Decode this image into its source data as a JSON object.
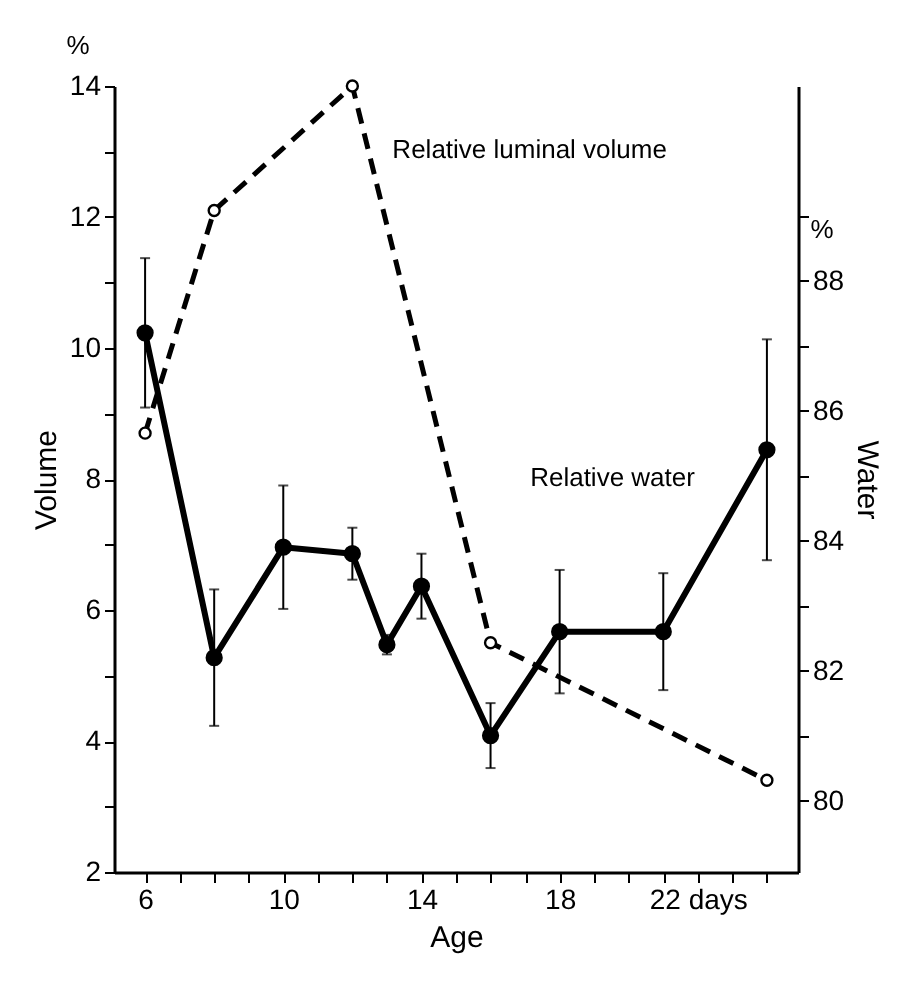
{
  "chart_data": {
    "type": "line",
    "xlabel": "Age",
    "ylabel": "Volume",
    "y2label": "Water",
    "annotations": [
      "%",
      "%"
    ],
    "xlim": [
      5.1,
      24.9
    ],
    "xticks": [
      6,
      {
        "value": 7,
        "label": null
      },
      {
        "value": 8,
        "label": null
      },
      {
        "value": 9,
        "label": null
      },
      10,
      {
        "value": 11,
        "label": null
      },
      {
        "value": 12,
        "label": null
      },
      {
        "value": 13,
        "label": null
      },
      14,
      {
        "value": 15,
        "label": null
      },
      {
        "value": 16,
        "label": null
      },
      {
        "value": 17,
        "label": null
      },
      18,
      {
        "value": 19,
        "label": null
      },
      {
        "value": 20,
        "label": null
      },
      {
        "value": 21,
        "label": null
      },
      {
        "value": 22,
        "label": "22 days"
      },
      {
        "value": 23,
        "label": null
      },
      {
        "value": 24,
        "label": null
      }
    ],
    "ylim": [
      2,
      14
    ],
    "yticks": [
      2,
      {
        "value": 3,
        "label": null
      },
      4,
      {
        "value": 5,
        "label": null
      },
      6,
      {
        "value": 7,
        "label": null
      },
      8,
      {
        "value": 9,
        "label": null
      },
      10,
      {
        "value": 11,
        "label": null
      },
      12,
      {
        "value": 13,
        "label": null
      },
      14
    ],
    "y2lim": [
      78.9,
      91
    ],
    "y2ticks": [
      80,
      {
        "value": 81,
        "label": null
      },
      82,
      {
        "value": 83,
        "label": null
      },
      84,
      {
        "value": 85,
        "label": null
      },
      86,
      {
        "value": 87,
        "label": null
      },
      88,
      {
        "value": 89,
        "label": null
      }
    ],
    "marker": "circle",
    "grid": false,
    "series": [
      {
        "name": "Relative luminal volume",
        "color": "#000000",
        "line_style": "dashed",
        "x": [
          6,
          8,
          12,
          16,
          24
        ],
        "values": [
          8.7,
          12.1,
          14.0,
          5.5,
          3.4
        ]
      },
      {
        "name": "Relative water",
        "color": "#000000",
        "line_style": "solid",
        "axis": "y2",
        "x": [
          6,
          8,
          10,
          12,
          13,
          14,
          16,
          18,
          21,
          24
        ],
        "values": [
          87.2,
          82.2,
          83.9,
          83.8,
          82.4,
          83.3,
          81.0,
          82.6,
          82.6,
          85.4
        ],
        "errors": [
          1.15,
          1.05,
          0.95,
          0.4,
          0.15,
          0.5,
          0.5,
          0.95,
          0.9,
          1.7
        ]
      }
    ]
  }
}
